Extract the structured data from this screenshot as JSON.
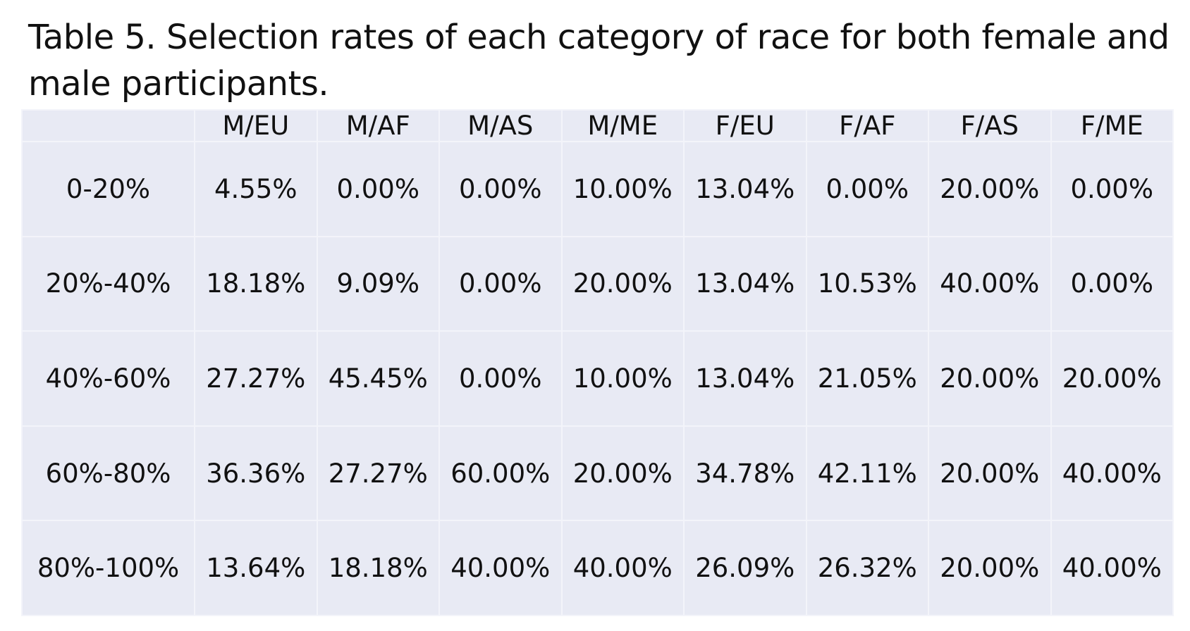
{
  "caption": "Table 5. Selection rates of each category of race for both female and male participants.",
  "chart_data": {
    "type": "table",
    "columns": [
      "",
      "M/EU",
      "M/AF",
      "M/AS",
      "M/ME",
      "F/EU",
      "F/AF",
      "F/AS",
      "F/ME"
    ],
    "rows": [
      [
        "0-20%",
        "4.55%",
        "0.00%",
        "0.00%",
        "10.00%",
        "13.04%",
        "0.00%",
        "20.00%",
        "0.00%"
      ],
      [
        "20%-40%",
        "18.18%",
        "9.09%",
        "0.00%",
        "20.00%",
        "13.04%",
        "10.53%",
        "40.00%",
        "0.00%"
      ],
      [
        "40%-60%",
        "27.27%",
        "45.45%",
        "0.00%",
        "10.00%",
        "13.04%",
        "21.05%",
        "20.00%",
        "20.00%"
      ],
      [
        "60%-80%",
        "36.36%",
        "27.27%",
        "60.00%",
        "20.00%",
        "34.78%",
        "42.11%",
        "20.00%",
        "40.00%"
      ],
      [
        "80%-100%",
        "13.64%",
        "18.18%",
        "40.00%",
        "40.00%",
        "26.09%",
        "26.32%",
        "20.00%",
        "40.00%"
      ]
    ]
  },
  "colors": {
    "cell_background": "#e8eaf4",
    "grid_line": "#f3f4fa",
    "text": "#111111"
  }
}
